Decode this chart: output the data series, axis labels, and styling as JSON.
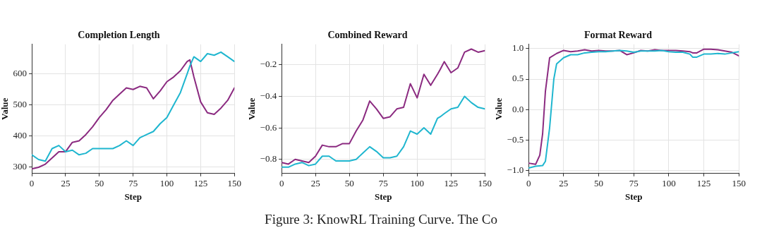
{
  "chart_data": [
    {
      "type": "line",
      "title": "Completion Length",
      "xlabel": "Step",
      "ylabel": "Value",
      "xlim": [
        0,
        150
      ],
      "xticks": [
        0,
        25,
        50,
        75,
        100,
        125,
        150
      ],
      "ylim": [
        280,
        695
      ],
      "yticks": [
        300,
        400,
        500,
        600
      ],
      "grid": true,
      "legend": false,
      "marker": "none",
      "line_style": "solid",
      "series": [
        {
          "color": "#1fb6cf",
          "x": [
            0,
            5,
            10,
            15,
            20,
            25,
            30,
            35,
            40,
            45,
            50,
            55,
            60,
            65,
            70,
            75,
            80,
            85,
            90,
            95,
            100,
            105,
            110,
            115,
            117,
            120,
            125,
            130,
            135,
            140,
            145,
            150
          ],
          "values": [
            340,
            325,
            320,
            360,
            370,
            350,
            355,
            340,
            345,
            360,
            360,
            360,
            360,
            370,
            385,
            370,
            395,
            405,
            415,
            440,
            460,
            500,
            540,
            600,
            625,
            655,
            640,
            665,
            660,
            670,
            655,
            640
          ]
        },
        {
          "color": "#8b2a80",
          "x": [
            0,
            5,
            10,
            15,
            20,
            25,
            30,
            35,
            40,
            45,
            50,
            55,
            60,
            65,
            70,
            75,
            80,
            85,
            90,
            95,
            100,
            105,
            110,
            115,
            117,
            120,
            125,
            130,
            135,
            140,
            145,
            150
          ],
          "values": [
            295,
            300,
            310,
            330,
            350,
            350,
            380,
            385,
            405,
            430,
            460,
            485,
            515,
            535,
            555,
            550,
            560,
            555,
            520,
            545,
            575,
            590,
            610,
            640,
            645,
            590,
            510,
            475,
            470,
            490,
            515,
            555
          ]
        }
      ],
      "annotations": [
        "Figure 3: KnowRL Training Curve. The Co"
      ]
    },
    {
      "type": "line",
      "title": "Combined Reward",
      "xlabel": "Step",
      "ylabel": "Value",
      "xlim": [
        0,
        150
      ],
      "xticks": [
        0,
        25,
        50,
        75,
        100,
        125,
        150
      ],
      "ylim": [
        -0.89,
        -0.07
      ],
      "yticks": [
        {
          "value": -0.8,
          "label": "−0.8"
        },
        {
          "value": -0.6,
          "label": "−0.6"
        },
        {
          "value": -0.4,
          "label": "−0.4"
        },
        {
          "value": -0.2,
          "label": "−0.2"
        }
      ],
      "grid": true,
      "legend": false,
      "marker": "none",
      "line_style": "solid",
      "series": [
        {
          "color": "#1fb6cf",
          "x": [
            0,
            5,
            10,
            15,
            20,
            25,
            30,
            35,
            40,
            45,
            50,
            55,
            60,
            65,
            70,
            75,
            80,
            85,
            90,
            95,
            100,
            105,
            110,
            115,
            117,
            120,
            125,
            130,
            135,
            140,
            145,
            150
          ],
          "values": [
            -0.85,
            -0.85,
            -0.83,
            -0.82,
            -0.84,
            -0.83,
            -0.78,
            -0.78,
            -0.81,
            -0.81,
            -0.81,
            -0.8,
            -0.76,
            -0.72,
            -0.75,
            -0.79,
            -0.79,
            -0.78,
            -0.72,
            -0.62,
            -0.64,
            -0.6,
            -0.64,
            -0.54,
            -0.53,
            -0.51,
            -0.48,
            -0.47,
            -0.4,
            -0.44,
            -0.47,
            -0.48
          ]
        },
        {
          "color": "#8b2a80",
          "x": [
            0,
            5,
            10,
            15,
            20,
            25,
            30,
            35,
            40,
            45,
            50,
            55,
            60,
            65,
            70,
            75,
            80,
            85,
            90,
            95,
            100,
            105,
            110,
            115,
            117,
            120,
            125,
            130,
            135,
            140,
            145,
            150
          ],
          "values": [
            -0.82,
            -0.83,
            -0.8,
            -0.81,
            -0.82,
            -0.78,
            -0.71,
            -0.72,
            -0.72,
            -0.7,
            -0.7,
            -0.62,
            -0.55,
            -0.43,
            -0.48,
            -0.54,
            -0.53,
            -0.48,
            -0.47,
            -0.32,
            -0.41,
            -0.26,
            -0.33,
            -0.26,
            -0.23,
            -0.18,
            -0.25,
            -0.22,
            -0.12,
            -0.1,
            -0.12,
            -0.11
          ]
        }
      ]
    },
    {
      "type": "line",
      "title": "Format Reward",
      "xlabel": "Step",
      "ylabel": "Value",
      "xlim": [
        0,
        150
      ],
      "xticks": [
        0,
        25,
        50,
        75,
        100,
        125,
        150
      ],
      "ylim": [
        -1.05,
        1.07
      ],
      "yticks": [
        {
          "value": -1,
          "label": "−1.0"
        },
        {
          "value": -0.5,
          "label": "−0.5"
        },
        {
          "value": 0,
          "label": "0.0"
        },
        {
          "value": 0.5,
          "label": "0.5"
        },
        {
          "value": 1,
          "label": "1.0"
        }
      ],
      "grid": true,
      "legend": false,
      "marker": "none",
      "line_style": "solid",
      "series": [
        {
          "color": "#1fb6cf",
          "x": [
            0,
            5,
            10,
            12,
            15,
            18,
            20,
            25,
            30,
            35,
            40,
            45,
            50,
            55,
            60,
            65,
            70,
            75,
            80,
            85,
            90,
            95,
            100,
            105,
            110,
            115,
            117,
            120,
            125,
            130,
            135,
            140,
            145,
            150
          ],
          "values": [
            -0.96,
            -0.93,
            -0.92,
            -0.85,
            -0.3,
            0.5,
            0.75,
            0.85,
            0.9,
            0.9,
            0.93,
            0.94,
            0.95,
            0.95,
            0.96,
            0.97,
            0.96,
            0.94,
            0.96,
            0.96,
            0.96,
            0.97,
            0.95,
            0.94,
            0.94,
            0.91,
            0.86,
            0.86,
            0.91,
            0.91,
            0.92,
            0.91,
            0.93,
            0.95
          ]
        },
        {
          "color": "#8b2a80",
          "x": [
            0,
            5,
            8,
            10,
            12,
            15,
            20,
            25,
            30,
            35,
            40,
            45,
            50,
            55,
            60,
            65,
            70,
            75,
            80,
            85,
            90,
            95,
            100,
            105,
            110,
            115,
            117,
            120,
            125,
            130,
            135,
            140,
            145,
            150
          ],
          "values": [
            -0.88,
            -0.9,
            -0.75,
            -0.4,
            0.3,
            0.85,
            0.92,
            0.97,
            0.95,
            0.96,
            0.98,
            0.96,
            0.97,
            0.96,
            0.96,
            0.97,
            0.9,
            0.93,
            0.97,
            0.96,
            0.98,
            0.97,
            0.97,
            0.97,
            0.96,
            0.95,
            0.93,
            0.93,
            0.99,
            0.99,
            0.98,
            0.96,
            0.94,
            0.88
          ]
        }
      ]
    }
  ]
}
